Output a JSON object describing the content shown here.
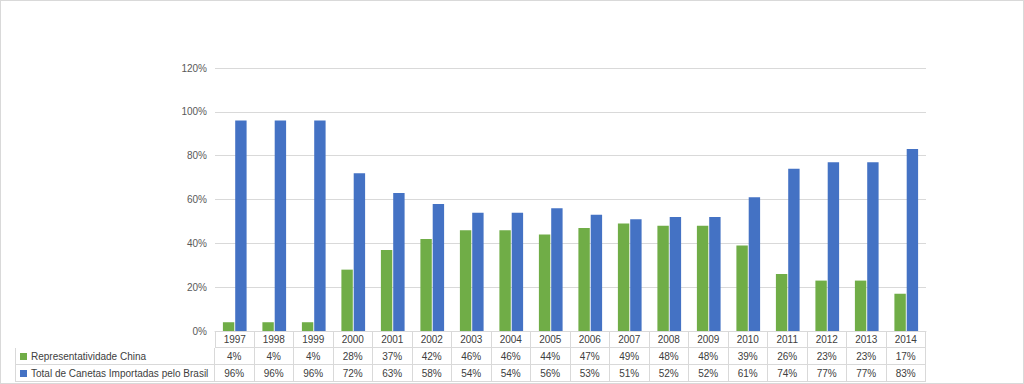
{
  "chart_data": {
    "type": "bar",
    "categories": [
      "1997",
      "1998",
      "1999",
      "2000",
      "2001",
      "2002",
      "2003",
      "2004",
      "2005",
      "2006",
      "2007",
      "2008",
      "2009",
      "2010",
      "2011",
      "2012",
      "2013",
      "2014"
    ],
    "series": [
      {
        "name": "Representatividade China",
        "color": "#70ad47",
        "values": [
          4,
          4,
          4,
          28,
          37,
          42,
          46,
          46,
          44,
          47,
          49,
          48,
          48,
          39,
          26,
          23,
          23,
          17
        ],
        "value_labels": [
          "4%",
          "4%",
          "4%",
          "28%",
          "37%",
          "42%",
          "46%",
          "46%",
          "44%",
          "47%",
          "49%",
          "48%",
          "48%",
          "39%",
          "26%",
          "23%",
          "23%",
          "17%"
        ]
      },
      {
        "name": "Total de Canetas Importadas pelo Brasil",
        "color": "#4472c4",
        "values": [
          96,
          96,
          96,
          72,
          63,
          58,
          54,
          54,
          56,
          53,
          51,
          52,
          52,
          61,
          74,
          77,
          77,
          83
        ],
        "value_labels": [
          "96%",
          "96%",
          "96%",
          "72%",
          "63%",
          "58%",
          "54%",
          "54%",
          "56%",
          "53%",
          "51%",
          "52%",
          "52%",
          "61%",
          "74%",
          "77%",
          "77%",
          "83%"
        ]
      }
    ],
    "ylim": [
      0,
      120
    ],
    "yticks": [
      {
        "value": 0,
        "label": "0%"
      },
      {
        "value": 20,
        "label": "20%"
      },
      {
        "value": 40,
        "label": "40%"
      },
      {
        "value": 60,
        "label": "60%"
      },
      {
        "value": 80,
        "label": "80%"
      },
      {
        "value": 100,
        "label": "100%"
      },
      {
        "value": 120,
        "label": "120%"
      }
    ],
    "grid": true
  }
}
